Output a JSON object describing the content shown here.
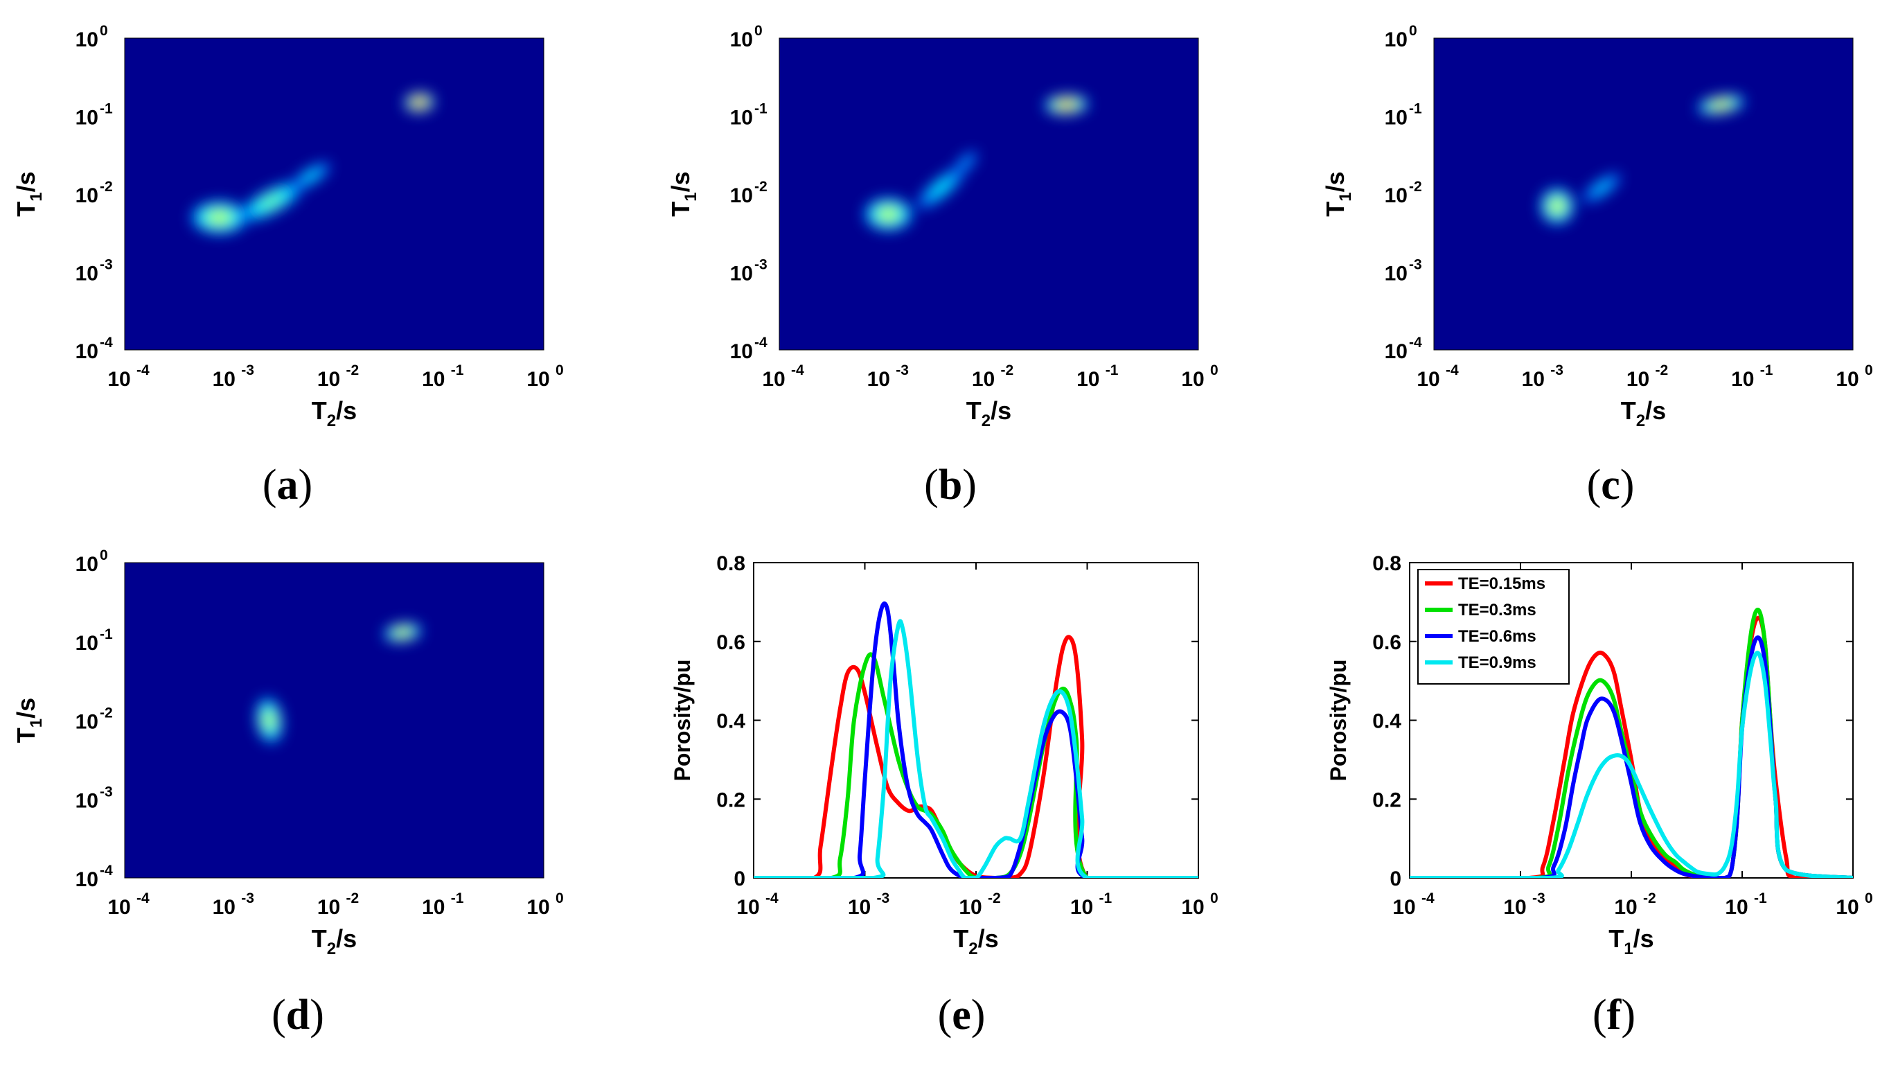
{
  "figure": {
    "panel_labels": {
      "open": "(",
      "close": ")",
      "letters": [
        "a",
        "b",
        "c",
        "d",
        "e",
        "f"
      ]
    }
  },
  "colors": {
    "background": "#00008f",
    "red": "#ff0000",
    "green": "#00e000",
    "blue": "#0000ff",
    "cyan": "#00e8f0"
  },
  "chart_data": [
    {
      "type": "heatmap",
      "panel": "a",
      "xlabel": "T",
      "xlabel_sub": "2",
      "xlabel_unit": "/s",
      "ylabel": "T",
      "ylabel_sub": "1",
      "ylabel_unit": "/s",
      "x_scale": "log",
      "y_scale": "log",
      "xlim": [
        0.0001,
        1
      ],
      "ylim": [
        0.0001,
        1
      ],
      "x_ticks": [
        "10",
        "10",
        "10",
        "10",
        "10"
      ],
      "x_tick_exponents": [
        "-4",
        "-3",
        "-2",
        "-1",
        "0"
      ],
      "y_ticks": [
        "10",
        "10",
        "10",
        "10",
        "10"
      ],
      "y_tick_exponents": [
        "-4",
        "-3",
        "-2",
        "-1",
        "0"
      ],
      "peaks": [
        {
          "t2": 0.0008,
          "t1": 0.005,
          "intensity": 0.55,
          "sx": 0.28,
          "sy": 0.22,
          "rot": 0
        },
        {
          "t2": 0.0025,
          "t1": 0.008,
          "intensity": 0.42,
          "sx": 0.35,
          "sy": 0.16,
          "rot": 28
        },
        {
          "t2": 0.006,
          "t1": 0.017,
          "intensity": 0.22,
          "sx": 0.22,
          "sy": 0.1,
          "rot": 32
        },
        {
          "t2": 0.065,
          "t1": 0.15,
          "intensity": 1.0,
          "sx": 0.15,
          "sy": 0.13,
          "rot": 5
        }
      ]
    },
    {
      "type": "heatmap",
      "panel": "b",
      "xlabel": "T",
      "xlabel_sub": "2",
      "xlabel_unit": "/s",
      "ylabel": "T",
      "ylabel_sub": "1",
      "ylabel_unit": "/s",
      "x_scale": "log",
      "y_scale": "log",
      "xlim": [
        0.0001,
        1
      ],
      "ylim": [
        0.0001,
        1
      ],
      "x_ticks": [
        "10",
        "10",
        "10",
        "10",
        "10"
      ],
      "x_tick_exponents": [
        "-4",
        "-3",
        "-2",
        "-1",
        "0"
      ],
      "y_ticks": [
        "10",
        "10",
        "10",
        "10",
        "10"
      ],
      "y_tick_exponents": [
        "-4",
        "-3",
        "-2",
        "-1",
        "0"
      ],
      "peaks": [
        {
          "t2": 0.0011,
          "t1": 0.0055,
          "intensity": 0.56,
          "sx": 0.24,
          "sy": 0.22,
          "rot": 0
        },
        {
          "t2": 0.0035,
          "t1": 0.012,
          "intensity": 0.25,
          "sx": 0.3,
          "sy": 0.12,
          "rot": 40
        },
        {
          "t2": 0.006,
          "t1": 0.025,
          "intensity": 0.12,
          "sx": 0.15,
          "sy": 0.08,
          "rot": 45
        },
        {
          "t2": 0.055,
          "t1": 0.14,
          "intensity": 0.85,
          "sx": 0.22,
          "sy": 0.13,
          "rot": 3
        }
      ]
    },
    {
      "type": "heatmap",
      "panel": "c",
      "xlabel": "T",
      "xlabel_sub": "2",
      "xlabel_unit": "/s",
      "ylabel": "T",
      "ylabel_sub": "1",
      "ylabel_unit": "/s",
      "x_scale": "log",
      "y_scale": "log",
      "xlim": [
        0.0001,
        1
      ],
      "ylim": [
        0.0001,
        1
      ],
      "x_ticks": [
        "10",
        "10",
        "10",
        "10",
        "10"
      ],
      "x_tick_exponents": [
        "-4",
        "-3",
        "-2",
        "-1",
        "0"
      ],
      "y_ticks": [
        "10",
        "10",
        "10",
        "10",
        "10"
      ],
      "y_tick_exponents": [
        "-4",
        "-3",
        "-2",
        "-1",
        "0"
      ],
      "peaks": [
        {
          "t2": 0.0015,
          "t1": 0.007,
          "intensity": 0.6,
          "sx": 0.17,
          "sy": 0.24,
          "rot": 0
        },
        {
          "t2": 0.004,
          "t1": 0.012,
          "intensity": 0.18,
          "sx": 0.22,
          "sy": 0.1,
          "rot": 35
        },
        {
          "t2": 0.055,
          "t1": 0.14,
          "intensity": 0.7,
          "sx": 0.24,
          "sy": 0.12,
          "rot": 10
        }
      ]
    },
    {
      "type": "heatmap",
      "panel": "d",
      "xlabel": "T",
      "xlabel_sub": "2",
      "xlabel_unit": "/s",
      "ylabel": "T",
      "ylabel_sub": "1",
      "ylabel_unit": "/s",
      "x_scale": "log",
      "y_scale": "log",
      "xlim": [
        0.0001,
        1
      ],
      "ylim": [
        0.0001,
        1
      ],
      "x_ticks": [
        "10",
        "10",
        "10",
        "10",
        "10"
      ],
      "x_tick_exponents": [
        "-4",
        "-3",
        "-2",
        "-1",
        "0"
      ],
      "y_ticks": [
        "10",
        "10",
        "10",
        "10",
        "10"
      ],
      "y_tick_exponents": [
        "-4",
        "-3",
        "-2",
        "-1",
        "0"
      ],
      "peaks": [
        {
          "t2": 0.0024,
          "t1": 0.01,
          "intensity": 0.55,
          "sx": 0.13,
          "sy": 0.3,
          "rot": 8
        },
        {
          "t2": 0.045,
          "t1": 0.13,
          "intensity": 0.68,
          "sx": 0.19,
          "sy": 0.12,
          "rot": 8
        }
      ]
    },
    {
      "type": "line",
      "panel": "e",
      "xlabel": "T",
      "xlabel_sub": "2",
      "xlabel_unit": "/s",
      "ylabel": "Porosity/pu",
      "x_scale": "log",
      "xlim": [
        0.0001,
        1
      ],
      "ylim": [
        0,
        0.8
      ],
      "x_ticks": [
        "10",
        "10",
        "10",
        "10",
        "10"
      ],
      "x_tick_exponents": [
        "-4",
        "-3",
        "-2",
        "-1",
        "0"
      ],
      "y_ticks": [
        "0",
        "0.2",
        "0.4",
        "0.6",
        "0.8"
      ],
      "series": [
        {
          "name": "TE=0.15ms",
          "color": "#ff0000",
          "x": [
            0.0001,
            0.00035,
            0.0004,
            0.0005,
            0.0006,
            0.0007,
            0.00085,
            0.001,
            0.0013,
            0.0016,
            0.002,
            0.0025,
            0.003,
            0.0035,
            0.004,
            0.0047,
            0.0055,
            0.007,
            0.01,
            0.015,
            0.02,
            0.025,
            0.03,
            0.04,
            0.05,
            0.06,
            0.07,
            0.08,
            0.09,
            0.1,
            1
          ],
          "y": [
            0,
            0,
            0.08,
            0.28,
            0.43,
            0.52,
            0.53,
            0.47,
            0.33,
            0.23,
            0.19,
            0.17,
            0.18,
            0.18,
            0.17,
            0.13,
            0.09,
            0.04,
            0.005,
            0,
            0,
            0.01,
            0.06,
            0.25,
            0.45,
            0.58,
            0.61,
            0.55,
            0.35,
            0,
            0
          ]
        },
        {
          "name": "TE=0.3ms",
          "color": "#00e000",
          "x": [
            0.0001,
            0.0005,
            0.0006,
            0.0007,
            0.0008,
            0.001,
            0.0012,
            0.0015,
            0.002,
            0.0025,
            0.003,
            0.0035,
            0.004,
            0.005,
            0.006,
            0.008,
            0.01,
            0.015,
            0.02,
            0.025,
            0.03,
            0.04,
            0.05,
            0.06,
            0.07,
            0.08,
            0.1,
            1
          ],
          "y": [
            0,
            0,
            0.05,
            0.2,
            0.4,
            0.54,
            0.56,
            0.45,
            0.3,
            0.22,
            0.18,
            0.17,
            0.16,
            0.12,
            0.07,
            0.02,
            0,
            0,
            0.01,
            0.06,
            0.15,
            0.33,
            0.44,
            0.48,
            0.45,
            0.35,
            0,
            0
          ]
        },
        {
          "name": "TE=0.6ms",
          "color": "#0000ff",
          "x": [
            0.0001,
            0.0008,
            0.0009,
            0.001,
            0.0012,
            0.0014,
            0.0016,
            0.0018,
            0.002,
            0.0023,
            0.0026,
            0.003,
            0.0035,
            0.004,
            0.005,
            0.006,
            0.008,
            0.01,
            0.015,
            0.02,
            0.025,
            0.03,
            0.04,
            0.05,
            0.06,
            0.07,
            0.08,
            0.09,
            0.1,
            1
          ],
          "y": [
            0,
            0,
            0.06,
            0.25,
            0.55,
            0.68,
            0.68,
            0.55,
            0.4,
            0.27,
            0.2,
            0.16,
            0.14,
            0.12,
            0.06,
            0.02,
            0,
            0,
            0,
            0.005,
            0.08,
            0.18,
            0.34,
            0.41,
            0.42,
            0.38,
            0.25,
            0.1,
            0,
            0
          ]
        },
        {
          "name": "TE=0.9ms",
          "color": "#00e8f0",
          "x": [
            0.0001,
            0.0012,
            0.0013,
            0.0015,
            0.0017,
            0.002,
            0.0022,
            0.0025,
            0.003,
            0.0035,
            0.004,
            0.005,
            0.006,
            0.007,
            0.008,
            0.01,
            0.012,
            0.015,
            0.018,
            0.02,
            0.025,
            0.03,
            0.04,
            0.05,
            0.06,
            0.07,
            0.08,
            0.09,
            0.1,
            1
          ],
          "y": [
            0,
            0,
            0.05,
            0.25,
            0.5,
            0.64,
            0.63,
            0.52,
            0.3,
            0.18,
            0.15,
            0.1,
            0.05,
            0.02,
            0,
            0,
            0.03,
            0.08,
            0.1,
            0.1,
            0.1,
            0.2,
            0.38,
            0.46,
            0.47,
            0.42,
            0.3,
            0.15,
            0,
            0
          ]
        }
      ]
    },
    {
      "type": "line",
      "panel": "f",
      "xlabel": "T",
      "xlabel_sub": "1",
      "xlabel_unit": "/s",
      "ylabel": "Porosity/pu",
      "x_scale": "log",
      "xlim": [
        0.0001,
        1
      ],
      "ylim": [
        0,
        0.8
      ],
      "x_ticks": [
        "10",
        "10",
        "10",
        "10",
        "10"
      ],
      "x_tick_exponents": [
        "-4",
        "-3",
        "-2",
        "-1",
        "0"
      ],
      "y_ticks": [
        "0",
        "0.2",
        "0.4",
        "0.6",
        "0.8"
      ],
      "legend_position": "top-left",
      "series": [
        {
          "name": "TE=0.15ms",
          "color": "#ff0000",
          "x": [
            0.0001,
            0.0012,
            0.0016,
            0.002,
            0.0025,
            0.003,
            0.004,
            0.005,
            0.006,
            0.007,
            0.008,
            0.01,
            0.012,
            0.015,
            0.02,
            0.025,
            0.03,
            0.04,
            0.05,
            0.07,
            0.08,
            0.09,
            0.1,
            0.12,
            0.14,
            0.16,
            0.18,
            0.2,
            0.25,
            0.3,
            1
          ],
          "y": [
            0,
            0,
            0.03,
            0.15,
            0.3,
            0.42,
            0.53,
            0.57,
            0.56,
            0.52,
            0.44,
            0.3,
            0.17,
            0.1,
            0.05,
            0.03,
            0.01,
            0.003,
            0,
            0,
            0.02,
            0.15,
            0.4,
            0.6,
            0.66,
            0.6,
            0.4,
            0.25,
            0.05,
            0,
            0
          ]
        },
        {
          "name": "TE=0.3ms",
          "color": "#00e000",
          "x": [
            0.0001,
            0.0014,
            0.0018,
            0.0022,
            0.0027,
            0.0033,
            0.004,
            0.005,
            0.006,
            0.007,
            0.008,
            0.01,
            0.012,
            0.015,
            0.02,
            0.025,
            0.03,
            0.04,
            0.05,
            0.07,
            0.08,
            0.09,
            0.1,
            0.12,
            0.14,
            0.16,
            0.18,
            0.2,
            0.25,
            1
          ],
          "y": [
            0,
            0,
            0.03,
            0.13,
            0.27,
            0.38,
            0.46,
            0.5,
            0.49,
            0.45,
            0.38,
            0.27,
            0.17,
            0.11,
            0.06,
            0.04,
            0.02,
            0.005,
            0,
            0,
            0.02,
            0.15,
            0.4,
            0.62,
            0.68,
            0.6,
            0.4,
            0.2,
            0.02,
            0
          ]
        },
        {
          "name": "TE=0.6ms",
          "color": "#0000ff",
          "x": [
            0.0001,
            0.0015,
            0.002,
            0.0025,
            0.003,
            0.0035,
            0.004,
            0.005,
            0.006,
            0.007,
            0.008,
            0.01,
            0.012,
            0.015,
            0.02,
            0.025,
            0.03,
            0.04,
            0.05,
            0.07,
            0.08,
            0.09,
            0.1,
            0.12,
            0.14,
            0.16,
            0.18,
            0.2,
            0.25,
            1
          ],
          "y": [
            0,
            0,
            0.03,
            0.12,
            0.24,
            0.33,
            0.4,
            0.45,
            0.45,
            0.42,
            0.36,
            0.24,
            0.14,
            0.08,
            0.04,
            0.02,
            0.01,
            0.003,
            0,
            0,
            0.02,
            0.15,
            0.38,
            0.56,
            0.61,
            0.55,
            0.38,
            0.2,
            0.02,
            0
          ]
        },
        {
          "name": "TE=0.9ms",
          "color": "#00e8f0",
          "x": [
            0.0001,
            0.0018,
            0.0022,
            0.0027,
            0.0033,
            0.004,
            0.005,
            0.006,
            0.007,
            0.008,
            0.009,
            0.01,
            0.012,
            0.015,
            0.02,
            0.025,
            0.03,
            0.035,
            0.04,
            0.05,
            0.06,
            0.07,
            0.08,
            0.09,
            0.1,
            0.12,
            0.14,
            0.16,
            0.18,
            0.2,
            0.25,
            1
          ],
          "y": [
            0,
            0,
            0.02,
            0.07,
            0.14,
            0.21,
            0.27,
            0.3,
            0.31,
            0.31,
            0.3,
            0.28,
            0.23,
            0.17,
            0.1,
            0.06,
            0.04,
            0.025,
            0.015,
            0.01,
            0.01,
            0.03,
            0.08,
            0.2,
            0.38,
            0.53,
            0.57,
            0.5,
            0.35,
            0.2,
            0.02,
            0
          ]
        }
      ]
    }
  ]
}
